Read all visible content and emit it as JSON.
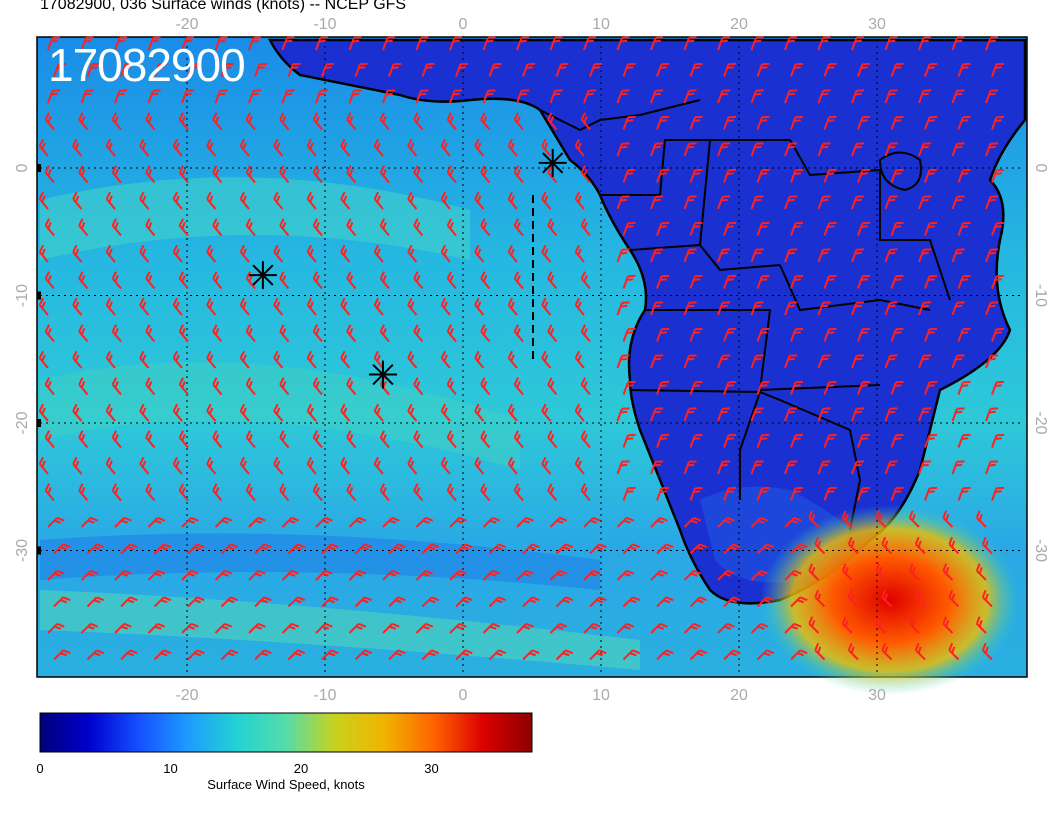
{
  "title": "17082900, 036 Surface winds (knots) -- NCEP GFS",
  "stamp": "17082900",
  "lon_labels": [
    "-20",
    "-10",
    "0",
    "10",
    "20",
    "30"
  ],
  "lat_labels": [
    "0",
    "-10",
    "-20",
    "-30"
  ],
  "colorbar": {
    "label": "Surface Wind Speed, knots",
    "ticks": [
      "0",
      "10",
      "20",
      "30"
    ],
    "stops": [
      "#00007a",
      "#0000cc",
      "#1450ff",
      "#1e9bff",
      "#23d2d2",
      "#55dcaa",
      "#c8d21e",
      "#f0b400",
      "#ff6400",
      "#dc0000",
      "#8c0000"
    ]
  },
  "markers": [
    {
      "name": "marker-1",
      "lon": 6.5,
      "lat": 0.4
    },
    {
      "name": "marker-2",
      "lon": -14.5,
      "lat": -8.4
    },
    {
      "name": "marker-3",
      "lon": -5.8,
      "lat": -16.2
    }
  ],
  "colors": {
    "barb": "#ff2020",
    "land": "#1a2fc8",
    "ocean": "#2ab0e0",
    "coast": "#000000"
  }
}
